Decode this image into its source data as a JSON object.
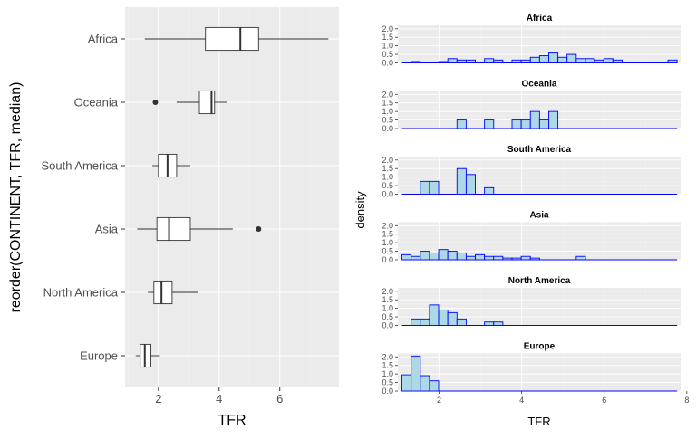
{
  "colors": {
    "panel_bg": "#EBEBEB",
    "grid_major": "#FFFFFF",
    "grid_minor": "#F2F2F2",
    "tick_text": "#4D4D4D",
    "axis_title": "#000000",
    "hist_fill": "#ADD8E6",
    "hist_stroke": "#0000FF",
    "box_fill": "#FFFFFF",
    "box_stroke": "#333333",
    "outlier": "#333333"
  },
  "chart_data": [
    {
      "type": "boxplot",
      "xlabel": "TFR",
      "ylabel": "reorder(CONTINENT, TFR, median)",
      "xlim": [
        0.9,
        7.95
      ],
      "x_ticks": [
        2,
        4,
        6
      ],
      "grid": true,
      "categories": [
        "Africa",
        "Oceania",
        "South America",
        "Asia",
        "North America",
        "Europe"
      ],
      "boxes": [
        {
          "category": "Africa",
          "whisker_low": 1.55,
          "q1": 3.55,
          "median": 4.7,
          "q3": 5.3,
          "whisker_high": 7.6,
          "outliers": []
        },
        {
          "category": "Oceania",
          "whisker_low": 2.6,
          "q1": 3.35,
          "median": 3.75,
          "q3": 3.85,
          "whisker_high": 4.25,
          "outliers": [
            1.9
          ]
        },
        {
          "category": "South America",
          "whisker_low": 1.8,
          "q1": 2.0,
          "median": 2.3,
          "q3": 2.6,
          "whisker_high": 3.05,
          "outliers": []
        },
        {
          "category": "Asia",
          "whisker_low": 1.3,
          "q1": 1.95,
          "median": 2.35,
          "q3": 3.05,
          "whisker_high": 4.45,
          "outliers": [
            5.3
          ]
        },
        {
          "category": "North America",
          "whisker_low": 1.65,
          "q1": 1.85,
          "median": 2.1,
          "q3": 2.45,
          "whisker_high": 3.3,
          "outliers": []
        },
        {
          "category": "Europe",
          "whisker_low": 1.25,
          "q1": 1.4,
          "median": 1.55,
          "q3": 1.75,
          "whisker_high": 2.05,
          "outliers": []
        }
      ]
    },
    {
      "type": "histogram",
      "facet": "CONTINENT",
      "xlabel": "TFR",
      "ylabel": "density",
      "xlim": [
        1.0,
        7.85
      ],
      "x_ticks": [
        2,
        4,
        6,
        8
      ],
      "ylim": [
        0,
        2.2
      ],
      "y_ticks": [
        "0.0",
        "0.5",
        "1.0",
        "1.5",
        "2.0"
      ],
      "bin_start": 1.1,
      "bin_width": 0.2222,
      "panels": [
        {
          "title": "Africa",
          "values": [
            0,
            0.08,
            0,
            0,
            0.08,
            0.25,
            0.17,
            0.17,
            0,
            0.25,
            0.17,
            0,
            0.17,
            0.17,
            0.33,
            0.42,
            0.58,
            0.33,
            0.5,
            0.25,
            0.25,
            0.17,
            0.25,
            0.17,
            0,
            0,
            0,
            0,
            0,
            0.17
          ]
        },
        {
          "title": "Oceania",
          "values": [
            0,
            0,
            0,
            0,
            0,
            0,
            0.5,
            0,
            0,
            0.5,
            0,
            0,
            0.5,
            0.5,
            1.0,
            0.5,
            1.0,
            0,
            0,
            0,
            0,
            0,
            0,
            0,
            0,
            0,
            0,
            0,
            0,
            0
          ]
        },
        {
          "title": "South America",
          "values": [
            0,
            0,
            0.75,
            0.75,
            0,
            0,
            1.5,
            1.15,
            0,
            0.38,
            0,
            0,
            0,
            0,
            0,
            0,
            0,
            0,
            0,
            0,
            0,
            0,
            0,
            0,
            0,
            0,
            0,
            0,
            0,
            0
          ]
        },
        {
          "title": "Asia",
          "values": [
            0.3,
            0.2,
            0.5,
            0.4,
            0.6,
            0.5,
            0.4,
            0.2,
            0.3,
            0.2,
            0.2,
            0.1,
            0.1,
            0.2,
            0.1,
            0,
            0,
            0,
            0,
            0.2,
            0,
            0,
            0,
            0,
            0,
            0,
            0,
            0,
            0,
            0
          ]
        },
        {
          "title": "North America",
          "values": [
            0,
            0.38,
            0.38,
            1.2,
            0.9,
            0.75,
            0.38,
            0,
            0,
            0.2,
            0.2,
            0,
            0,
            0,
            0,
            0,
            0,
            0,
            0,
            0,
            0,
            0,
            0,
            0,
            0,
            0,
            0,
            0,
            0,
            0
          ]
        },
        {
          "title": "Europe",
          "values": [
            0.95,
            2.05,
            0.9,
            0.6,
            0,
            0,
            0,
            0,
            0,
            0,
            0,
            0,
            0,
            0,
            0,
            0,
            0,
            0,
            0,
            0,
            0,
            0,
            0,
            0,
            0,
            0,
            0,
            0,
            0,
            0
          ]
        }
      ]
    }
  ]
}
